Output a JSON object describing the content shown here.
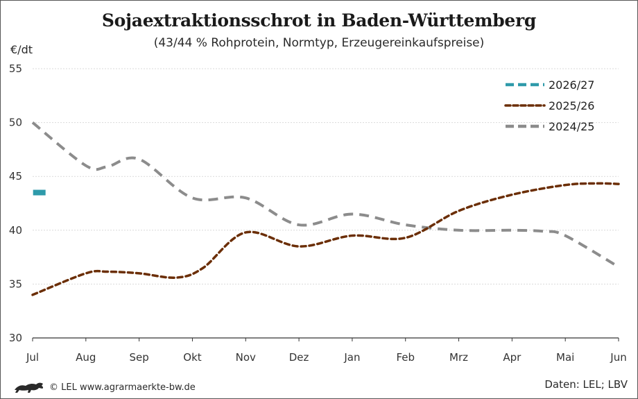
{
  "header": {
    "title": "Sojaextraktionsschrot in Baden-Württemberg",
    "subtitle": "(43/44 % Rohprotein, Normtyp, Erzeugereinkaufspreise)",
    "y_unit": "€/dt"
  },
  "footer": {
    "copyright": "© LEL www.agrarmaerkte-bw.de",
    "source": "Daten: LEL; LBV",
    "logo_icon": "lion-icon"
  },
  "chart_data": {
    "type": "line",
    "categories": [
      "Jul",
      "Aug",
      "Sep",
      "Okt",
      "Nov",
      "Dez",
      "Jan",
      "Feb",
      "Mrz",
      "Apr",
      "Mai",
      "Jun"
    ],
    "ylim": [
      30,
      55
    ],
    "yticks": [
      "30",
      "35",
      "40",
      "45",
      "50",
      "55"
    ],
    "grid": true,
    "legend_position": "top-right",
    "series": [
      {
        "name": "2026/27",
        "color": "#2e9aaa",
        "style": "dash",
        "points": [
          [
            0.1,
            43.5
          ]
        ]
      },
      {
        "name": "2025/26",
        "color": "#6b2e06",
        "style": "dot",
        "points": [
          [
            0,
            34.0
          ],
          [
            1,
            36.0
          ],
          [
            1.4,
            36.15
          ],
          [
            2,
            36.0
          ],
          [
            2.7,
            35.6
          ],
          [
            3.2,
            36.5
          ],
          [
            4,
            39.8
          ],
          [
            5,
            38.5
          ],
          [
            6,
            39.5
          ],
          [
            7,
            39.3
          ],
          [
            8,
            41.8
          ],
          [
            9,
            43.3
          ],
          [
            10,
            44.2
          ],
          [
            10.6,
            44.35
          ],
          [
            11,
            44.3
          ]
        ]
      },
      {
        "name": "2024/25",
        "color": "#8c8c8c",
        "style": "dash",
        "points": [
          [
            0,
            50.0
          ],
          [
            1,
            46.0
          ],
          [
            1.4,
            45.9
          ],
          [
            2,
            46.6
          ],
          [
            3,
            43.0
          ],
          [
            4,
            43.0
          ],
          [
            5,
            40.5
          ],
          [
            6,
            41.5
          ],
          [
            7,
            40.5
          ],
          [
            8,
            40.0
          ],
          [
            9,
            40.0
          ],
          [
            9.6,
            39.9
          ],
          [
            10,
            39.5
          ],
          [
            11,
            36.6
          ]
        ]
      }
    ]
  }
}
